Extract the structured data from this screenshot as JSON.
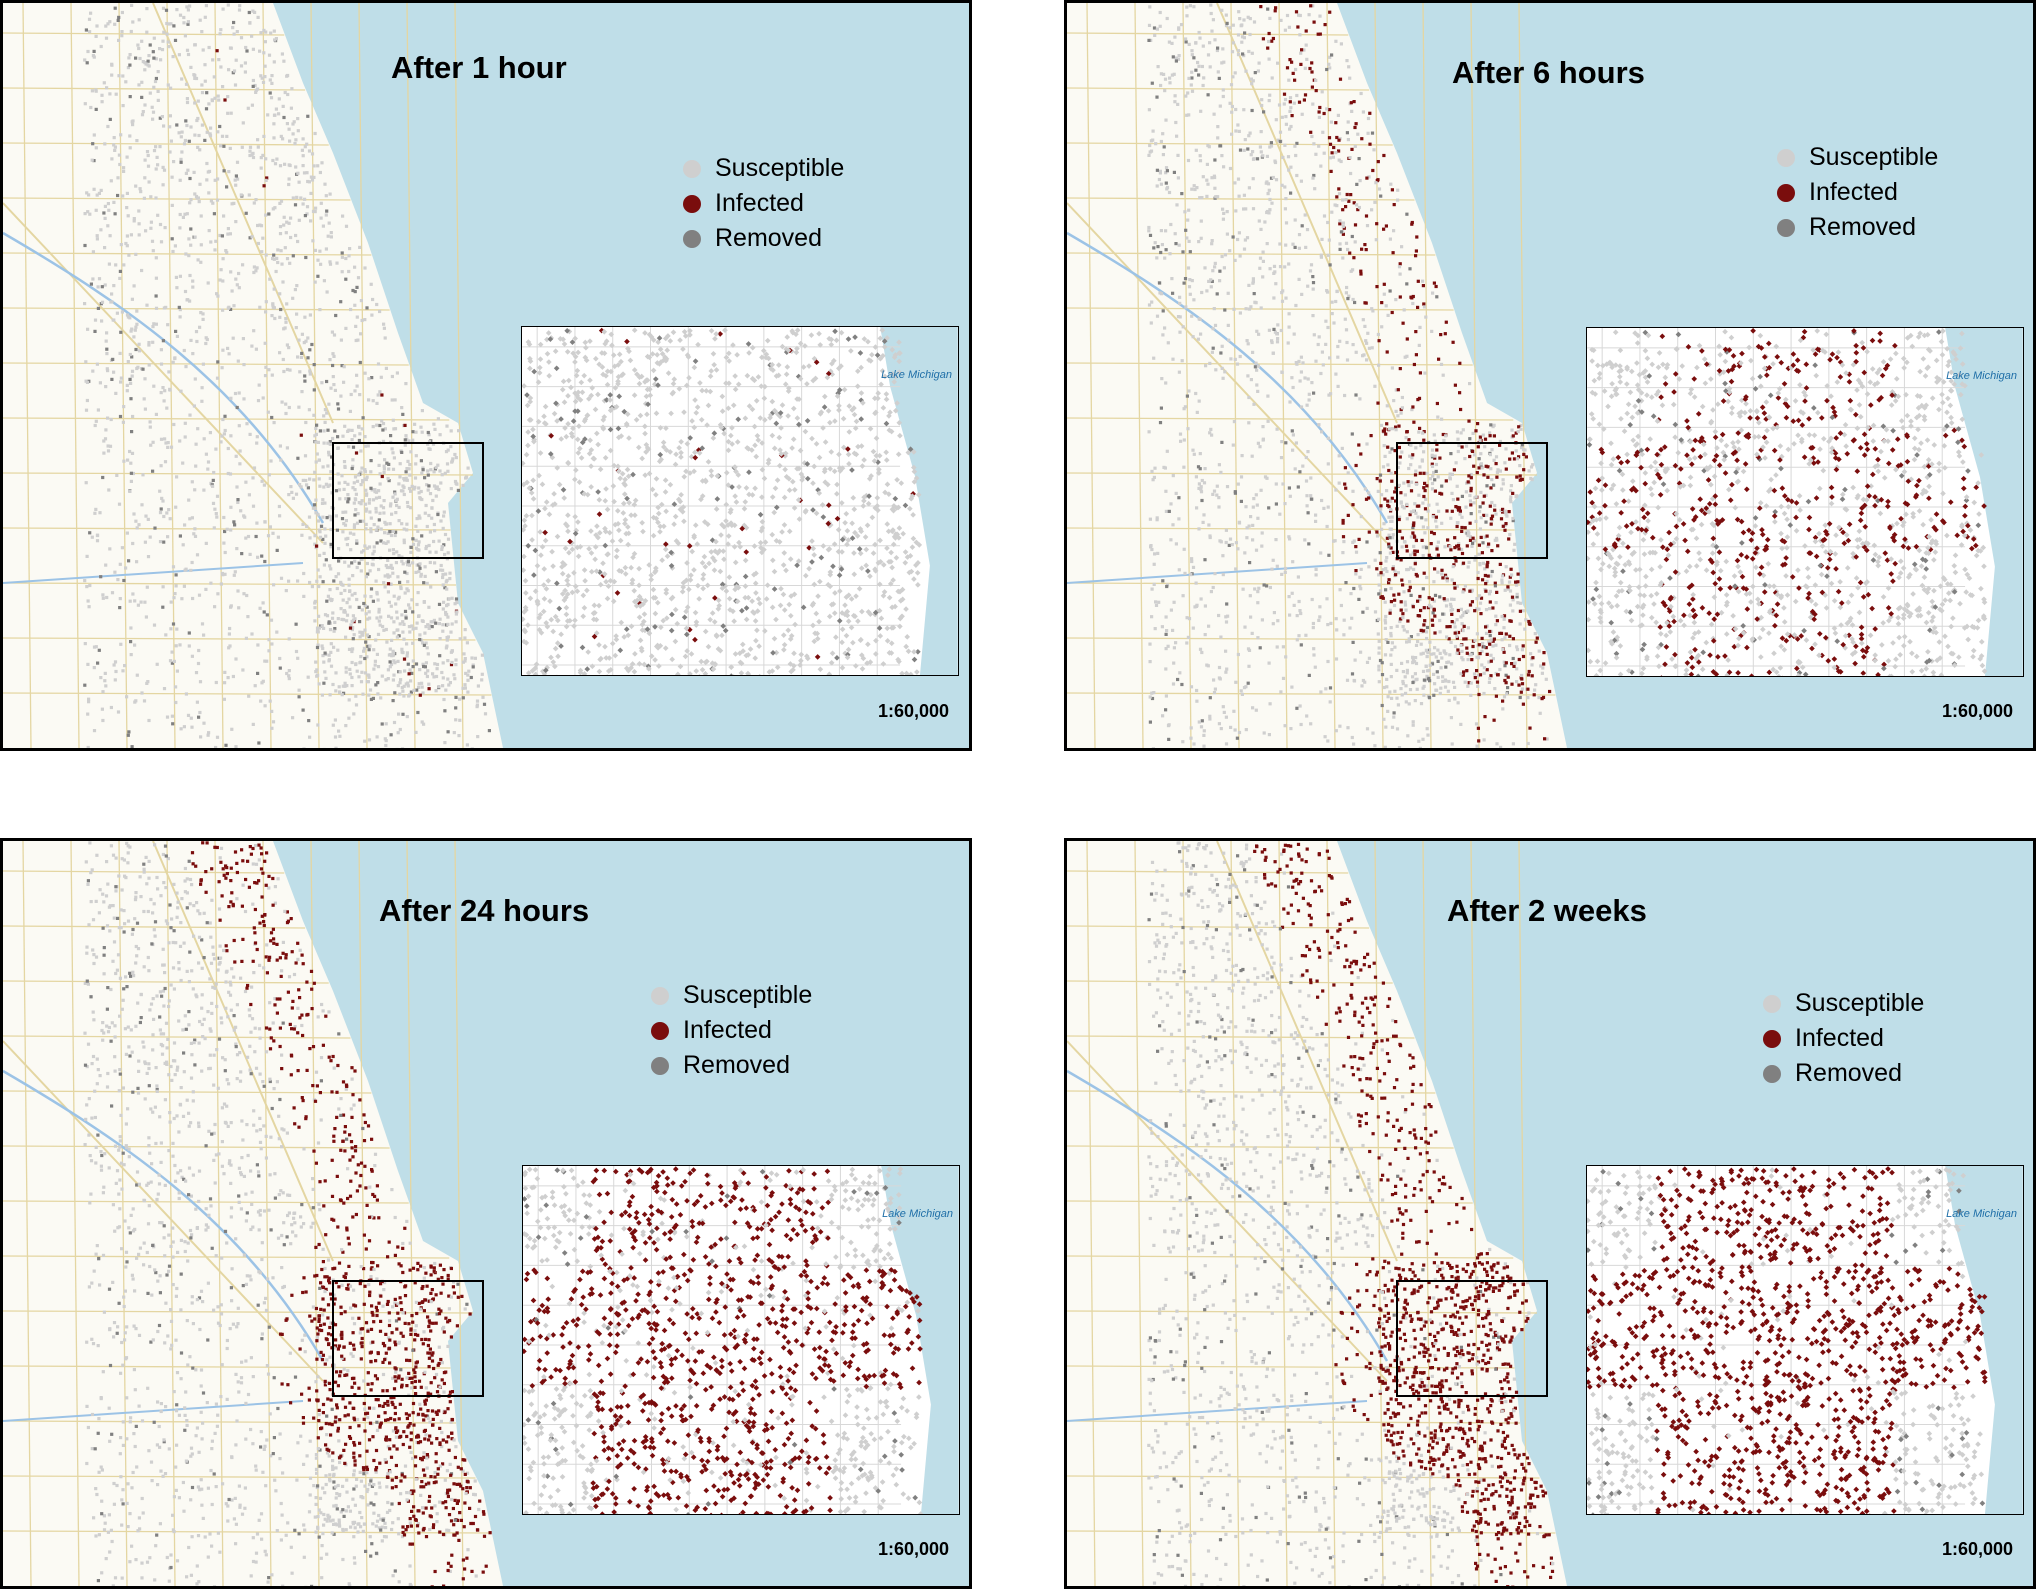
{
  "panels": [
    {
      "title": "After 1 hour",
      "scale": "1:60,000",
      "legend": {
        "susceptible": "Susceptible",
        "infected": "Infected",
        "removed": "Removed"
      },
      "infected_level": 0.02,
      "inset_label": "Lake Michigan"
    },
    {
      "title": "After 6 hours",
      "scale": "1:60,000",
      "legend": {
        "susceptible": "Susceptible",
        "infected": "Infected",
        "removed": "Removed"
      },
      "infected_level": 0.35,
      "inset_label": "Lake Michigan"
    },
    {
      "title": "After 24 hours",
      "scale": "1:60,000",
      "legend": {
        "susceptible": "Susceptible",
        "infected": "Infected",
        "removed": "Removed"
      },
      "infected_level": 0.65,
      "inset_label": "Lake Michigan"
    },
    {
      "title": "After 2 weeks",
      "scale": "1:60,000",
      "legend": {
        "susceptible": "Susceptible",
        "infected": "Infected",
        "removed": "Removed"
      },
      "infected_level": 0.75,
      "inset_label": "Lake Michigan"
    }
  ],
  "colors": {
    "susceptible": "#cfcfcf",
    "infected": "#7a0d0d",
    "removed": "#808080",
    "water": "#bfdee8",
    "land": "#fbfaf4",
    "street": "#e4d6a2",
    "river": "#9cc3e6"
  }
}
